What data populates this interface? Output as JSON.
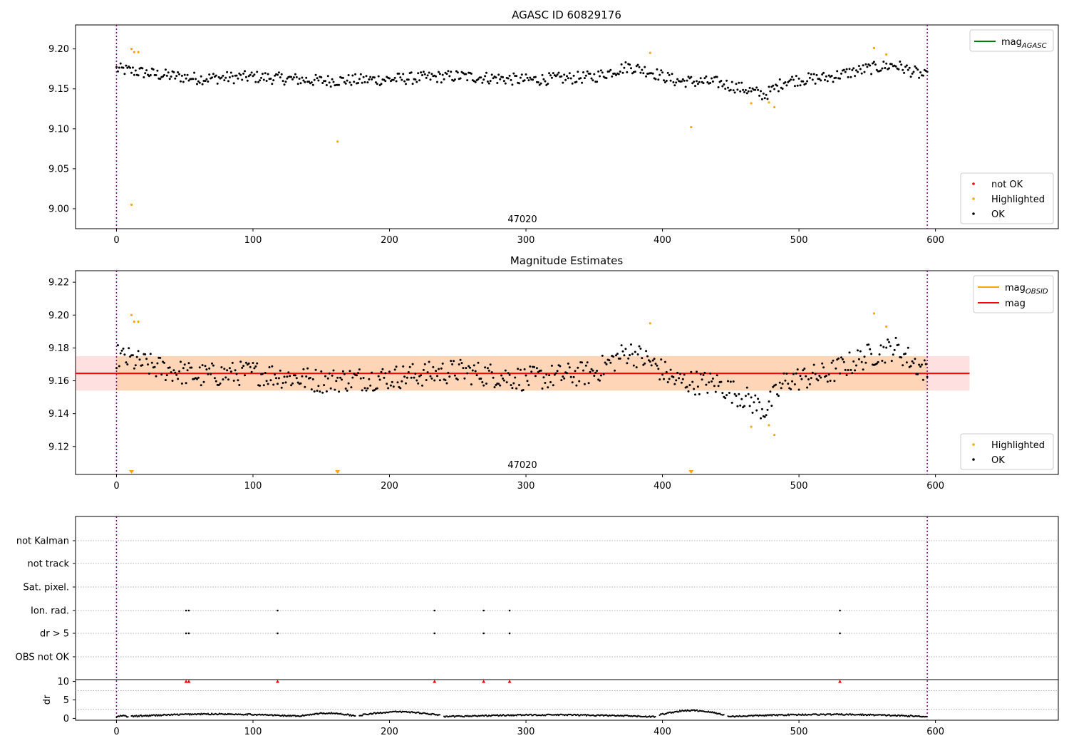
{
  "chart_data": [
    {
      "type": "scatter",
      "title": "AGASC ID 60829176",
      "obsid_label": "47020",
      "xlim": [
        -30,
        690
      ],
      "ylim": [
        8.975,
        9.23
      ],
      "xticks": [
        0,
        100,
        200,
        300,
        400,
        500,
        600
      ],
      "yticks": [
        9.0,
        9.05,
        9.1,
        9.15,
        9.2
      ],
      "ytick_labels": [
        "9.00",
        "9.05",
        "9.10",
        "9.15",
        "9.20"
      ],
      "vlines": [
        0,
        594
      ],
      "legend_lines": [
        {
          "name": "mag_AGASC",
          "base": "mag",
          "sub": "AGASC",
          "color": "#008000"
        }
      ],
      "legend_points": [
        {
          "name": "not OK",
          "color": "#ff0000"
        },
        {
          "name": "Highlighted",
          "color": "#ffa500"
        },
        {
          "name": "OK",
          "color": "#000000"
        }
      ],
      "highlighted": {
        "x": [
          11,
          13,
          16,
          162,
          391,
          421,
          465,
          478,
          482,
          555,
          564,
          11
        ],
        "y": [
          9.2,
          9.196,
          9.196,
          9.084,
          9.195,
          9.102,
          9.132,
          9.133,
          9.127,
          9.201,
          9.193,
          9.005
        ]
      },
      "ok_trend": {
        "x": [
          0,
          30,
          60,
          100,
          150,
          200,
          250,
          300,
          350,
          375,
          390,
          410,
          440,
          460,
          475,
          490,
          520,
          550,
          570,
          594
        ],
        "y": [
          9.175,
          9.168,
          9.163,
          9.165,
          9.16,
          9.162,
          9.166,
          9.161,
          9.165,
          9.178,
          9.172,
          9.16,
          9.158,
          9.15,
          9.142,
          9.16,
          9.164,
          9.175,
          9.18,
          9.165
        ]
      },
      "ok_scatter": 0.01
    },
    {
      "type": "scatter",
      "title": "Magnitude Estimates",
      "obsid_label": "47020",
      "xlim": [
        -30,
        690
      ],
      "ylim": [
        9.103,
        9.227
      ],
      "xticks": [
        0,
        100,
        200,
        300,
        400,
        500,
        600
      ],
      "yticks": [
        9.12,
        9.14,
        9.16,
        9.18,
        9.2,
        9.22
      ],
      "ytick_labels": [
        "9.12",
        "9.14",
        "9.16",
        "9.18",
        "9.20",
        "9.22"
      ],
      "vlines": [
        0,
        594
      ],
      "mag_obsid": 9.1645,
      "mag": 9.1645,
      "band_obsid": [
        9.154,
        9.175
      ],
      "band_mag": [
        9.154,
        9.175
      ],
      "band_x_end": 625,
      "legend_lines": [
        {
          "name": "mag_OBSID",
          "base": "mag",
          "sub": "OBSID",
          "color": "#ffa500"
        },
        {
          "name": "mag",
          "base": "mag",
          "sub": "",
          "color": "#ff0000"
        }
      ],
      "legend_points": [
        {
          "name": "Highlighted",
          "color": "#ffa500"
        },
        {
          "name": "OK",
          "color": "#000000"
        }
      ],
      "highlighted": {
        "x": [
          11,
          13,
          16,
          391,
          465,
          478,
          482,
          555,
          564
        ],
        "y": [
          9.2,
          9.196,
          9.196,
          9.195,
          9.132,
          9.133,
          9.127,
          9.201,
          9.193
        ]
      },
      "offscale_markers_x": [
        11,
        162,
        421
      ],
      "ok_trend": {
        "x": [
          0,
          30,
          60,
          100,
          150,
          200,
          250,
          300,
          350,
          375,
          390,
          410,
          440,
          460,
          475,
          490,
          520,
          550,
          570,
          594
        ],
        "y": [
          9.175,
          9.168,
          9.163,
          9.165,
          9.16,
          9.162,
          9.166,
          9.161,
          9.165,
          9.178,
          9.172,
          9.16,
          9.158,
          9.15,
          9.142,
          9.16,
          9.164,
          9.175,
          9.18,
          9.165
        ]
      },
      "ok_scatter": 0.01
    },
    {
      "type": "scatter",
      "title": "",
      "xlim": [
        -30,
        690
      ],
      "xticks": [
        0,
        100,
        200,
        300,
        400,
        500,
        600
      ],
      "vlines": [
        0,
        594
      ],
      "flag_rows": [
        "not Kalman",
        "not track",
        "Sat. pixel.",
        "Ion. rad.",
        "dr > 5",
        "OBS not OK"
      ],
      "flag_events": {
        "not Kalman": [],
        "not track": [],
        "Sat. pixel.": [],
        "Ion. rad.": [
          51,
          53,
          118,
          233,
          269,
          288,
          530
        ],
        "dr > 5": [
          51,
          53,
          118,
          233,
          269,
          288,
          530
        ],
        "OBS not OK": []
      },
      "dr_ylabel": "dr",
      "dr_ylim": [
        -0.5,
        10.5
      ],
      "dr_yticks": [
        0,
        5,
        10
      ],
      "dr_clipped_x": [
        51,
        53,
        118,
        233,
        269,
        288,
        530
      ],
      "dr_segments": [
        {
          "x0": 0,
          "x1": 9,
          "base": 0.6
        },
        {
          "x0": 11,
          "x1": 135,
          "base": 1.0
        },
        {
          "x0": 135,
          "x1": 175,
          "base": 1.2
        },
        {
          "x0": 178,
          "x1": 237,
          "base": 1.5
        },
        {
          "x0": 240,
          "x1": 395,
          "base": 0.8
        },
        {
          "x0": 398,
          "x1": 445,
          "base": 1.8
        },
        {
          "x0": 448,
          "x1": 594,
          "base": 0.9
        }
      ]
    }
  ]
}
